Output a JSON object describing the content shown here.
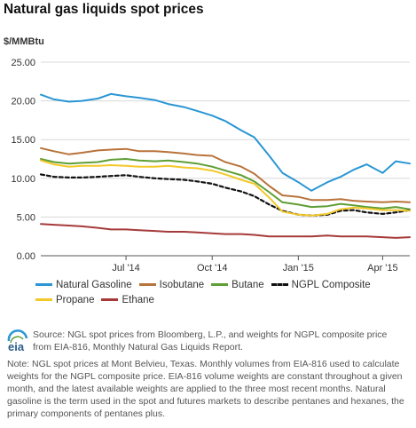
{
  "title": "Natural gas liquids spot prices",
  "y_unit": "$/MMBtu",
  "source_text": "Source: NGL spot prices from Bloomberg, L.P., and weights for NGPL composite price from EIA-816, Monthly Natural Gas Liquids Report.",
  "note_text": "Note: NGL spot prices at Mont Belvieu, Texas. Monthly volumes from EIA-816 used to calculate weights for the NGPL composite price. EIA-816 volume weights are constant throughout a given month, and the latest available weights are applied to the three most recent months. Natural gasoline is the term used in the spot and futures markets to describe pentanes and hexanes, the primary components of pentanes plus.",
  "logo_text": "eia",
  "chart_data": {
    "type": "line",
    "title": "Natural gas liquids spot prices",
    "ylabel": "$/MMBtu",
    "xlabel": "",
    "ylim": [
      0,
      25
    ],
    "yticks": [
      "0.00",
      "5.00",
      "10.00",
      "15.00",
      "20.00",
      "25.00"
    ],
    "xticks": [
      "Jul '14",
      "Oct '14",
      "Jan '15",
      "Apr '15"
    ],
    "x_tick_dates": [
      "2014-07-01",
      "2014-10-01",
      "2015-01-01",
      "2015-04-01"
    ],
    "x_range": [
      "2014-04-01",
      "2015-04-30"
    ],
    "grid": "horizontal",
    "legend_position": "bottom",
    "x": [
      "2014-04-01",
      "2014-04-15",
      "2014-05-01",
      "2014-05-15",
      "2014-06-01",
      "2014-06-15",
      "2014-07-01",
      "2014-07-15",
      "2014-08-01",
      "2014-08-15",
      "2014-09-01",
      "2014-09-15",
      "2014-10-01",
      "2014-10-15",
      "2014-11-01",
      "2014-11-15",
      "2014-12-01",
      "2014-12-15",
      "2015-01-01",
      "2015-01-15",
      "2015-02-01",
      "2015-02-15",
      "2015-03-01",
      "2015-03-15",
      "2015-04-01",
      "2015-04-15",
      "2015-04-30"
    ],
    "series": [
      {
        "name": "Natural Gasoline",
        "color": "#2a96d4",
        "dash": false,
        "values": [
          20.8,
          20.2,
          19.9,
          20.0,
          20.3,
          20.9,
          20.6,
          20.4,
          20.1,
          19.6,
          19.2,
          18.7,
          18.1,
          17.4,
          16.2,
          15.3,
          12.9,
          10.7,
          9.5,
          8.4,
          9.5,
          10.2,
          11.1,
          11.8,
          10.7,
          12.2,
          11.9
        ]
      },
      {
        "name": "Isobutane",
        "color": "#b8733a",
        "dash": false,
        "values": [
          13.9,
          13.5,
          13.1,
          13.3,
          13.6,
          13.7,
          13.8,
          13.5,
          13.5,
          13.4,
          13.2,
          13.0,
          12.9,
          12.1,
          11.5,
          10.6,
          9.0,
          7.8,
          7.6,
          7.2,
          7.2,
          7.3,
          7.1,
          7.0,
          6.9,
          7.0,
          6.9
        ]
      },
      {
        "name": "Butane",
        "color": "#5f9e35",
        "dash": false,
        "values": [
          12.5,
          12.1,
          11.9,
          12.0,
          12.1,
          12.4,
          12.5,
          12.3,
          12.2,
          12.3,
          12.1,
          11.9,
          11.5,
          11.0,
          10.4,
          9.6,
          8.2,
          6.9,
          6.6,
          6.3,
          6.4,
          6.7,
          6.5,
          6.3,
          6.1,
          6.3,
          6.0
        ]
      },
      {
        "name": "NGPL Composite",
        "color": "#111111",
        "dash": true,
        "values": [
          10.5,
          10.2,
          10.1,
          10.1,
          10.2,
          10.3,
          10.4,
          10.2,
          10.0,
          9.9,
          9.8,
          9.6,
          9.3,
          8.8,
          8.3,
          7.7,
          6.6,
          5.8,
          5.3,
          5.2,
          5.3,
          5.8,
          5.9,
          5.6,
          5.4,
          5.6,
          5.9
        ]
      },
      {
        "name": "Propane",
        "color": "#f3c829",
        "dash": false,
        "values": [
          12.3,
          11.8,
          11.5,
          11.6,
          11.6,
          11.7,
          11.6,
          11.5,
          11.5,
          11.6,
          11.4,
          11.3,
          11.0,
          10.5,
          9.8,
          9.3,
          7.5,
          5.7,
          5.3,
          5.2,
          5.4,
          6.0,
          6.2,
          6.1,
          5.9,
          5.9,
          5.8
        ]
      },
      {
        "name": "Ethane",
        "color": "#a63a3a",
        "dash": false,
        "values": [
          4.1,
          4.0,
          3.9,
          3.8,
          3.6,
          3.4,
          3.4,
          3.3,
          3.2,
          3.1,
          3.1,
          3.0,
          2.9,
          2.8,
          2.8,
          2.7,
          2.5,
          2.5,
          2.5,
          2.5,
          2.6,
          2.5,
          2.5,
          2.5,
          2.4,
          2.3,
          2.4
        ]
      }
    ],
    "legend_rows": [
      [
        "Natural Gasoline",
        "Isobutane",
        "Butane",
        "NGPL Composite"
      ],
      [
        "Propane",
        "Ethane"
      ]
    ]
  }
}
